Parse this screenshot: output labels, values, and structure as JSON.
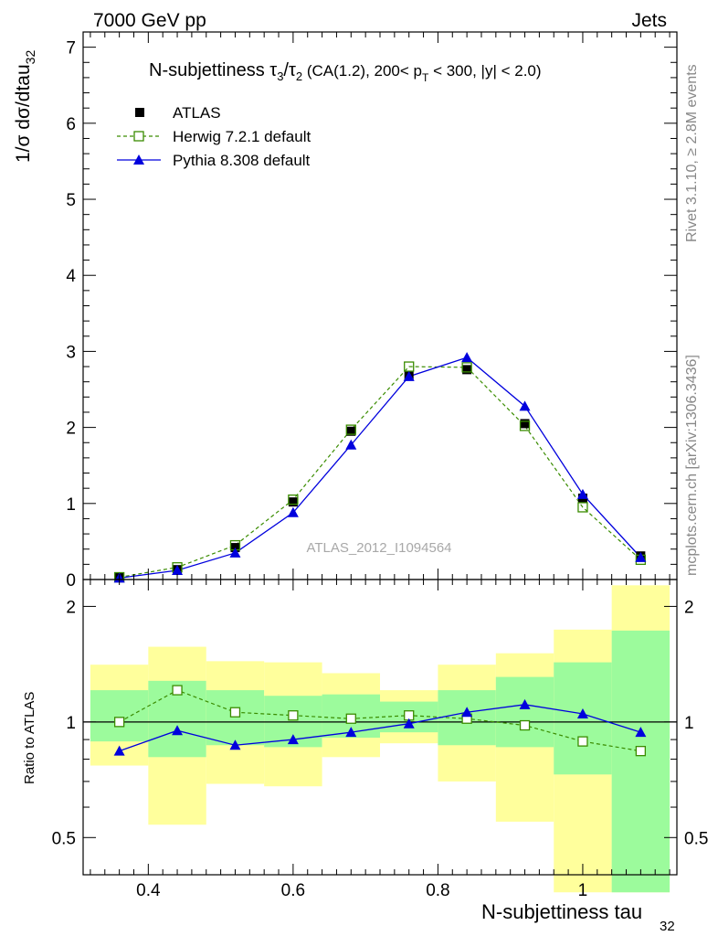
{
  "header": {
    "left": "7000 GeV pp",
    "right": "Jets"
  },
  "side_labels": {
    "rivet": "Rivet 3.1.10, ≥ 2.8M events",
    "mcplots": "mcplots.cern.ch [arXiv:1306.3436]"
  },
  "main_panel": {
    "title_prefix": "N-subjettiness ",
    "title_tau": "τ",
    "title_sub3": "3",
    "title_slash": "/",
    "title_sub2": "2",
    "title_rest_a": " (CA(1.2), 200< p",
    "title_pt_sub": "T",
    "title_rest_b": " < 300, |y| < 2.0)",
    "ylabel_main": "1/σ dσ/dtau",
    "ylabel_sub": "32",
    "watermark": "ATLAS_2012_I1094564"
  },
  "ratio_panel": {
    "ylabel": "Ratio to ATLAS"
  },
  "xaxis": {
    "label_main": "N-subjettiness tau",
    "label_sub": "32"
  },
  "legend": [
    {
      "label": "ATLAS",
      "color": "#000000",
      "marker": "filled-square"
    },
    {
      "label": "Herwig 7.2.1 default",
      "color": "#3a8c00",
      "marker": "open-square",
      "line": "dashed"
    },
    {
      "label": "Pythia 8.308 default",
      "color": "#0000dd",
      "marker": "filled-triangle",
      "line": "solid"
    }
  ],
  "chart_data": {
    "type": "line",
    "x": [
      0.36,
      0.44,
      0.52,
      0.6,
      0.68,
      0.76,
      0.84,
      0.92,
      1.0,
      1.08
    ],
    "bin_edges": [
      0.32,
      0.4,
      0.48,
      0.56,
      0.64,
      0.72,
      0.8,
      0.88,
      0.96,
      1.04,
      1.12
    ],
    "xlim": [
      0.31,
      1.13
    ],
    "xticks": [
      0.4,
      0.6,
      0.8,
      1.0
    ],
    "xtick_labels": [
      "0.4",
      "0.6",
      "0.8",
      "1"
    ],
    "main": {
      "ylim": [
        0,
        7.2
      ],
      "yticks": [
        0,
        1,
        2,
        3,
        4,
        5,
        6,
        7
      ],
      "ytick_labels": [
        "0",
        "1",
        "2",
        "3",
        "4",
        "5",
        "6",
        "7"
      ],
      "series": [
        {
          "name": "ATLAS",
          "values": [
            0.03,
            0.13,
            0.42,
            1.02,
            1.95,
            2.68,
            2.76,
            2.05,
            1.07,
            0.31
          ]
        },
        {
          "name": "Herwig 7.2.1 default",
          "values": [
            0.03,
            0.16,
            0.45,
            1.05,
            1.97,
            2.8,
            2.79,
            2.02,
            0.95,
            0.26
          ]
        },
        {
          "name": "Pythia 8.308 default",
          "values": [
            0.02,
            0.12,
            0.35,
            0.88,
            1.77,
            2.67,
            2.92,
            2.28,
            1.12,
            0.29
          ]
        }
      ]
    },
    "ratio": {
      "ylim": [
        0.4,
        2.35
      ],
      "log": true,
      "yticks": [
        0.5,
        1,
        2
      ],
      "ytick_labels": [
        "0.5",
        "1",
        "2"
      ],
      "band_inner": {
        "low": [
          0.89,
          0.81,
          0.87,
          0.86,
          0.91,
          0.94,
          0.87,
          0.86,
          0.73,
          0.36
        ],
        "high": [
          1.21,
          1.28,
          1.21,
          1.17,
          1.18,
          1.13,
          1.21,
          1.31,
          1.43,
          1.73
        ]
      },
      "band_outer": {
        "low": [
          0.77,
          0.54,
          0.69,
          0.68,
          0.81,
          0.88,
          0.7,
          0.55,
          0.36,
          0.36
        ],
        "high": [
          1.41,
          1.57,
          1.44,
          1.43,
          1.34,
          1.21,
          1.41,
          1.51,
          1.74,
          2.27
        ]
      },
      "series": [
        {
          "name": "Herwig 7.2.1 default",
          "values": [
            1.0,
            1.21,
            1.06,
            1.04,
            1.02,
            1.04,
            1.02,
            0.98,
            0.89,
            0.84
          ]
        },
        {
          "name": "Pythia 8.308 default",
          "values": [
            0.84,
            0.95,
            0.87,
            0.9,
            0.94,
            0.99,
            1.06,
            1.11,
            1.05,
            0.94
          ]
        }
      ]
    },
    "colors": {
      "data": "#000000",
      "herwig": "#3a8c00",
      "pythia": "#0000dd",
      "band_inner": "#9cfb9c",
      "band_outer": "#ffff9c"
    }
  }
}
